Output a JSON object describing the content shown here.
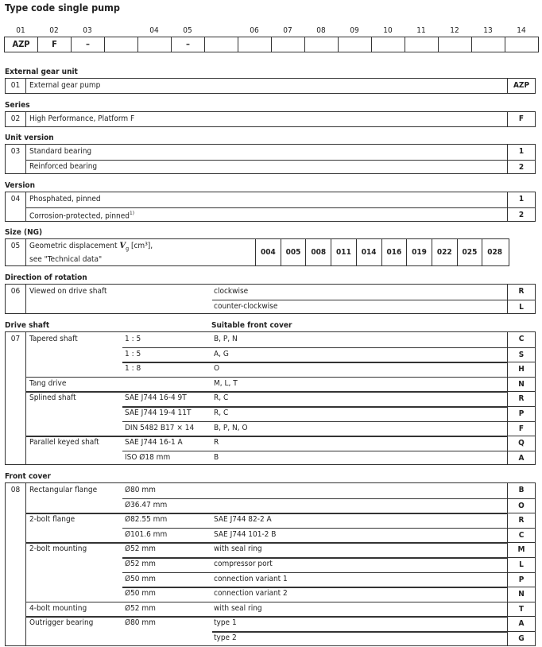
{
  "title": "Type code single pump",
  "type_code": {
    "positions": [
      "01",
      "02",
      "03",
      "",
      "04",
      "05",
      "",
      "06",
      "07",
      "08",
      "09",
      "10",
      "11",
      "12",
      "13",
      "14"
    ],
    "values": [
      "AZP",
      "F",
      "–",
      "",
      "",
      "–",
      "",
      "",
      "",
      "",
      "",
      "",
      "",
      "",
      "",
      ""
    ]
  },
  "sections": [
    {
      "heading": "External gear unit",
      "num": "01",
      "rows": [
        {
          "c1": "External gear pump",
          "code": "AZP"
        }
      ]
    },
    {
      "heading": "Series",
      "num": "02",
      "rows": [
        {
          "c1": "High Performance, Platform F",
          "code": "F"
        }
      ]
    },
    {
      "heading": "Unit version",
      "num": "03",
      "rows": [
        {
          "c1": "Standard bearing",
          "code": "1"
        },
        {
          "c1": "Reinforced bearing",
          "code": "2"
        }
      ]
    },
    {
      "heading": "Version",
      "num": "04",
      "rows": [
        {
          "c1": "Phosphated, pinned",
          "code": "1"
        },
        {
          "c1": "Corrosion-protected, pinned",
          "sup": "1)",
          "code": "2"
        }
      ]
    },
    {
      "heading": "Size (NG)",
      "num": "05",
      "size": true,
      "text_a": "Geometric displacement ",
      "symbol": "V",
      "symbol_sub": "g",
      "text_b": " [cm³],",
      "text_c": "see \"Technical data\"",
      "sizes": [
        "004",
        "005",
        "008",
        "011",
        "014",
        "016",
        "019",
        "022",
        "025",
        "028"
      ]
    },
    {
      "heading": "Direction of rotation",
      "num": "06",
      "rows": [
        {
          "c1": "Viewed on drive shaft",
          "c3": "clockwise",
          "code": "R"
        },
        {
          "c3": "counter-clockwise",
          "code": "L"
        }
      ]
    },
    {
      "heading": "Drive shaft",
      "col_header": "Suitable front cover",
      "num": "07",
      "rows": [
        {
          "c1": "Tapered shaft",
          "c2": "1 : 5",
          "c3": "B, P, N",
          "code": "C"
        },
        {
          "c2": "1 : 5",
          "c3": "A, G",
          "code": "S"
        },
        {
          "c2": "1 : 8",
          "c3": "O",
          "code": "H"
        },
        {
          "c1": "Tang drive",
          "c3": "M, L, T",
          "code": "N"
        },
        {
          "c1": "Splined shaft",
          "c2": "SAE J744 16-4 9T",
          "c3": "R, C",
          "code": "R"
        },
        {
          "c2": "SAE J744 19-4 11T",
          "c3": "R, C",
          "code": "P"
        },
        {
          "c2": "DIN 5482 B17 × 14",
          "c3": "B, P, N, O",
          "code": "F"
        },
        {
          "c1": "Parallel keyed shaft",
          "c2": "SAE J744 16-1 A",
          "c3": "R",
          "code": "Q"
        },
        {
          "c2": "ISO Ø18 mm",
          "c3": "B",
          "code": "A"
        }
      ]
    },
    {
      "heading": "Front cover",
      "num": "08",
      "rows": [
        {
          "c1": "Rectangular flange",
          "c2": "Ø80 mm",
          "code": "B"
        },
        {
          "c2": "Ø36.47 mm",
          "code": "O"
        },
        {
          "c1": "2-bolt flange",
          "c2": "Ø82.55 mm",
          "c3": "SAE J744 82-2 A",
          "code": "R"
        },
        {
          "c2": "Ø101.6 mm",
          "c3": "SAE J744 101-2 B",
          "code": "C"
        },
        {
          "c1": "2-bolt mounting",
          "c2": "Ø52 mm",
          "c3": "with seal ring",
          "code": "M"
        },
        {
          "c2": "Ø52 mm",
          "c3": "compressor port",
          "code": "L"
        },
        {
          "c2": "Ø50 mm",
          "c3": "connection variant  1",
          "code": "P"
        },
        {
          "c2": "Ø50 mm",
          "c3": "connection variant  2",
          "code": "N"
        },
        {
          "c1": "4-bolt mounting",
          "c2": "Ø52 mm",
          "c3": "with seal ring",
          "code": "T"
        },
        {
          "c1": "Outrigger bearing",
          "c2": "Ø80 mm",
          "c3": "type 1",
          "code": "A"
        },
        {
          "c3": "type 2",
          "code": "G"
        }
      ]
    }
  ]
}
